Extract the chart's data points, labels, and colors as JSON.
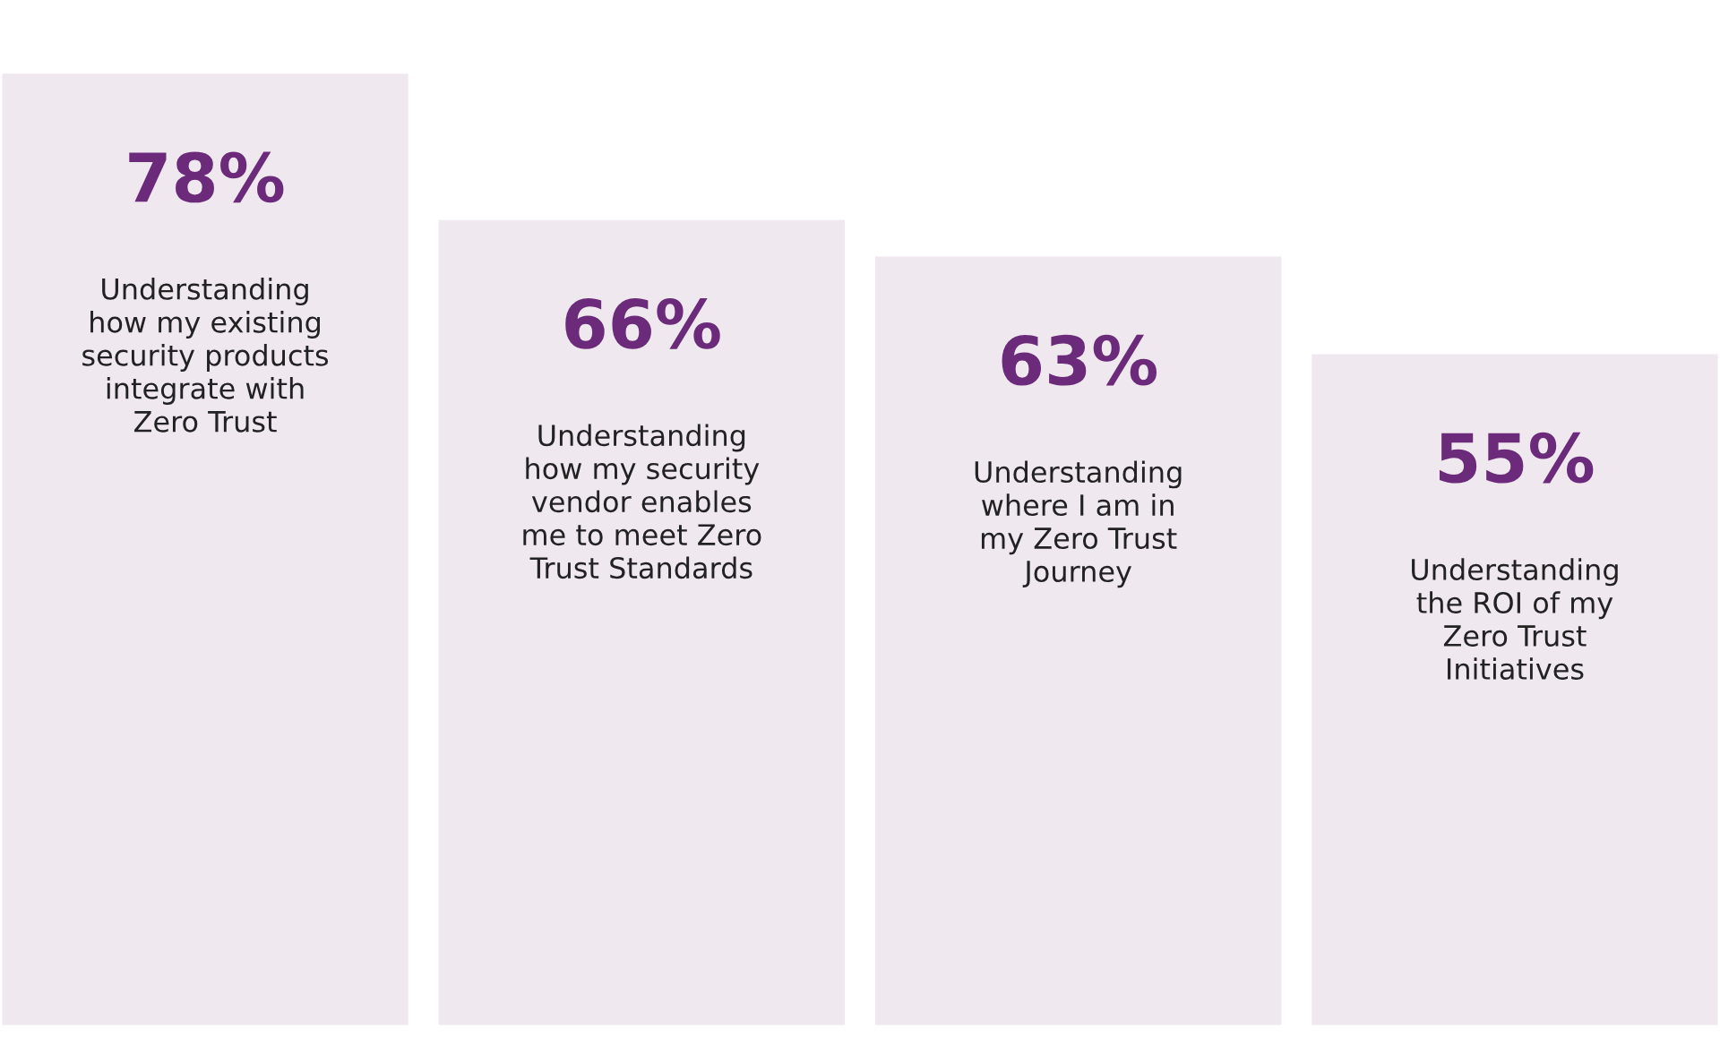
{
  "chart_data": {
    "type": "bar",
    "categories": [
      "Understanding\nhow my existing\nsecurity products\nintegrate with\nZero Trust",
      "Understanding\nhow my security\nvendor enables\nme to meet Zero\nTrust Standards",
      "Understanding\nwhere I am in\nmy Zero Trust\nJourney",
      "Understanding\nthe ROI of my\nZero Trust\nInitiatives"
    ],
    "values": [
      78,
      66,
      63,
      55
    ],
    "value_labels": [
      "78%",
      "66%",
      "63%",
      "55%"
    ],
    "color": "#efe8ef"
  }
}
